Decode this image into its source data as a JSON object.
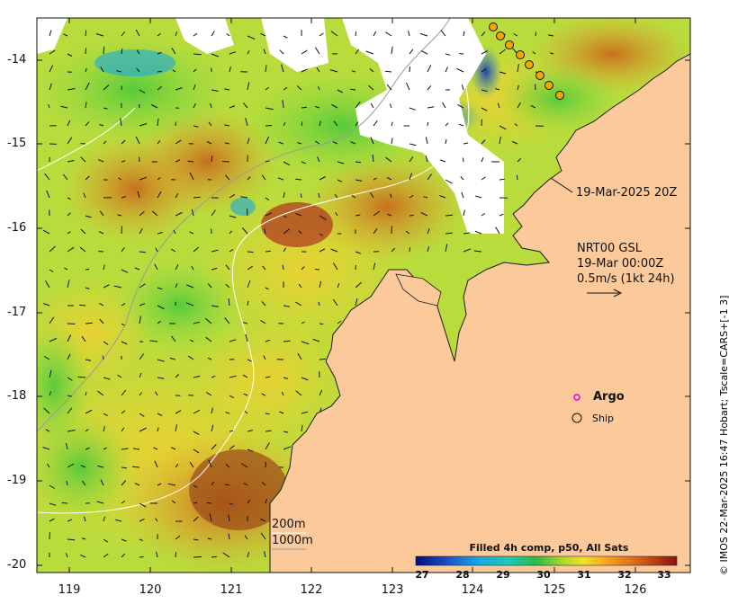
{
  "axes": {
    "lat_ticks": [
      "-14",
      "-15",
      "-16",
      "-17",
      "-18",
      "-19",
      "-20"
    ],
    "lon_ticks": [
      "119",
      "120",
      "121",
      "122",
      "123",
      "124",
      "125",
      "126"
    ]
  },
  "annotations": {
    "ship_track_time": "19-Mar-2025 20Z",
    "current_source": "NRT00 GSL",
    "current_time": "19-Mar 00:00Z",
    "current_scale": "0.5m/s (1kt 24h)"
  },
  "legend": {
    "argo_label": "Argo",
    "ship_label": "Ship",
    "contour_200": "200m",
    "contour_1000": "1000m"
  },
  "colorbar": {
    "title": "Filled 4h comp, p50, All Sats",
    "ticks": [
      "27",
      "28",
      "29",
      "30",
      "31",
      "32",
      "33"
    ]
  },
  "credit": "© IMOS 22-Mar-2025 16:47 Hobart; Tscale=CARS+[-1 3]",
  "colors": {
    "land": "#fbc99a",
    "argo_marker": "#e000e0",
    "ship_marker": "#f6a800"
  }
}
